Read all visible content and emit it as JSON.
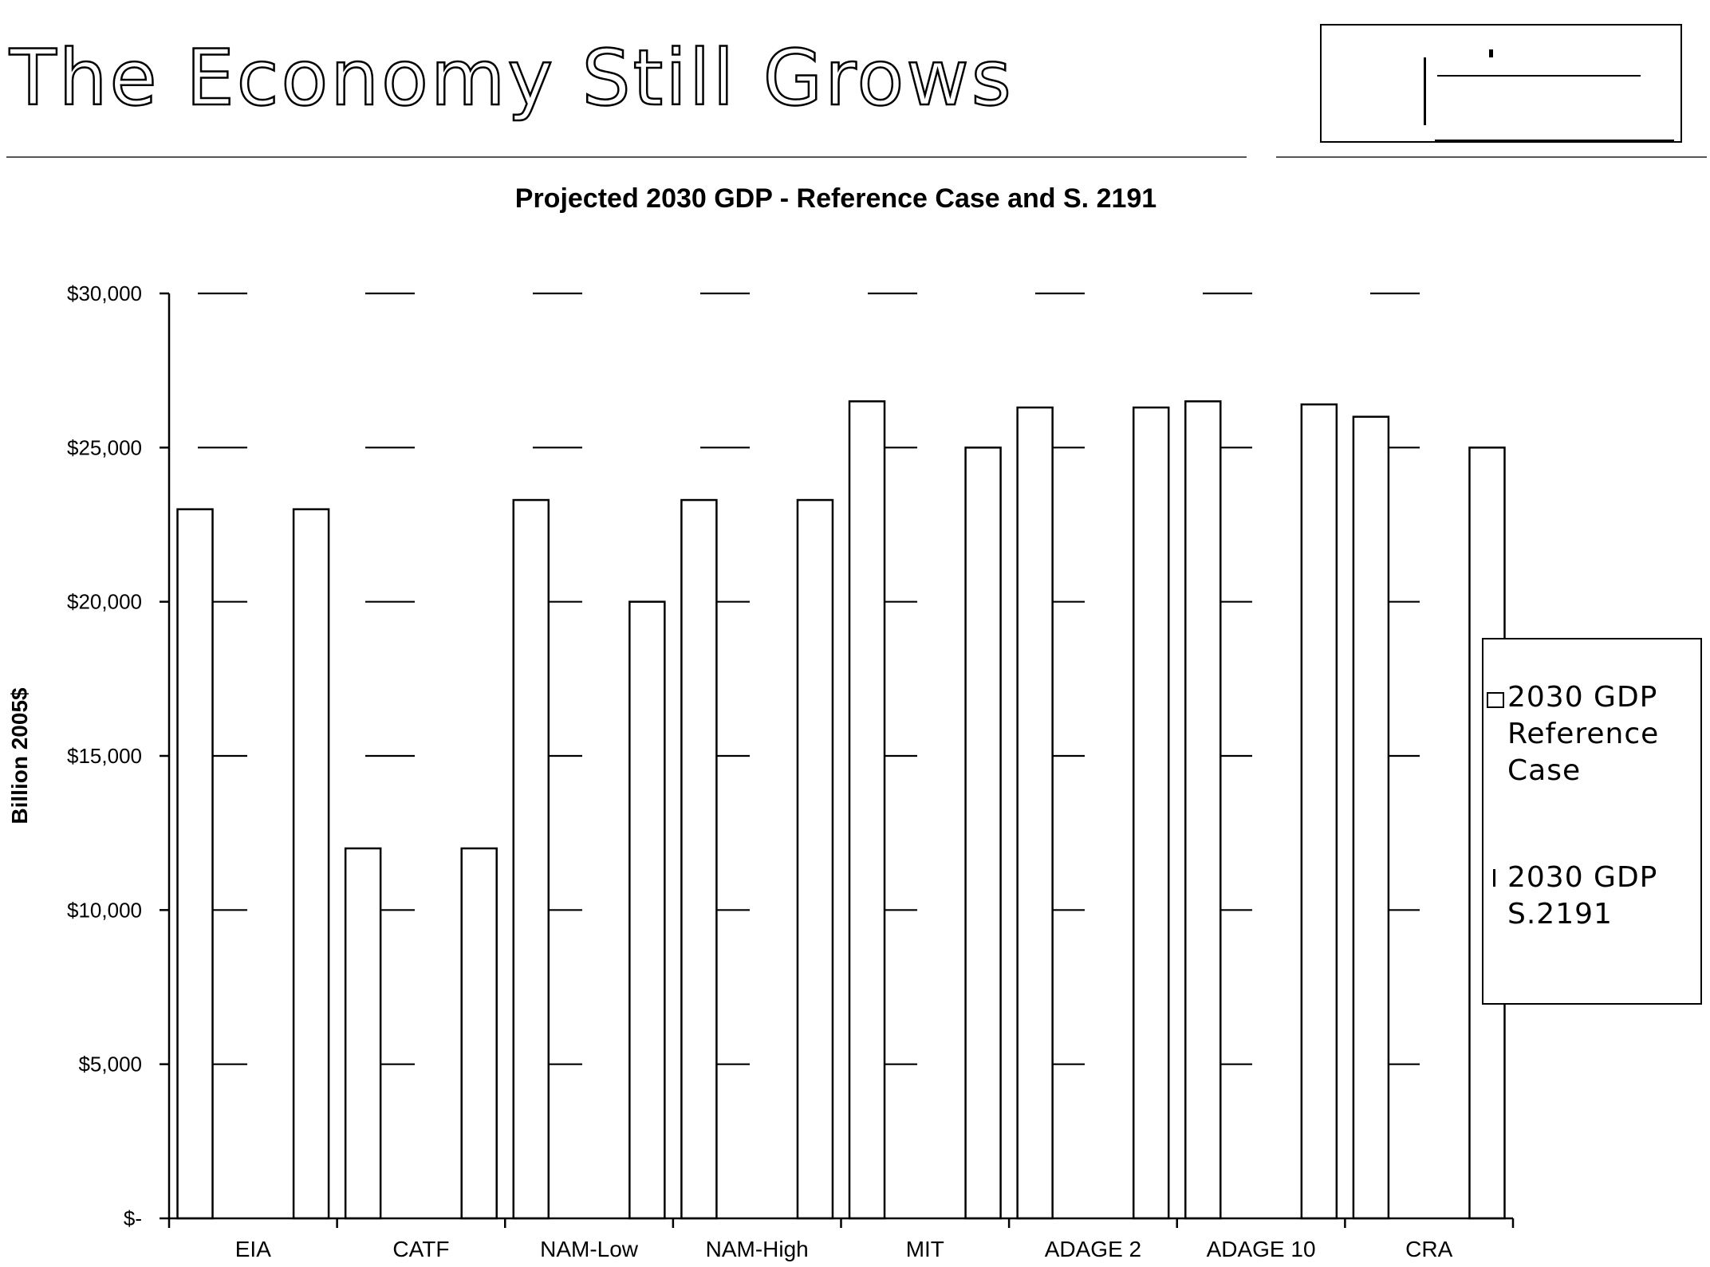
{
  "slide": {
    "title": "The Economy Still Grows"
  },
  "chart_data": {
    "type": "bar",
    "title": "Projected 2030 GDP - Reference Case and S. 2191",
    "xlabel": "",
    "ylabel": "Billion 2005$",
    "ylim": [
      0,
      30000
    ],
    "yticks": [
      0,
      5000,
      10000,
      15000,
      20000,
      25000,
      30000
    ],
    "ytick_labels": [
      "$-",
      "$5,000",
      "$10,000",
      "$15,000",
      "$20,000",
      "$25,000",
      "$30,000"
    ],
    "categories": [
      "EIA",
      "CATF",
      "NAM-Low",
      "NAM-High",
      "MIT",
      "ADAGE 2",
      "ADAGE 10",
      "CRA"
    ],
    "series": [
      {
        "name": "2030 GDP Reference Case",
        "values": [
          23000,
          12000,
          23300,
          23300,
          26500,
          26300,
          26500,
          26000
        ],
        "color": "#ffffff"
      },
      {
        "name": "2030 GDP S.2191",
        "values": [
          23000,
          12000,
          20000,
          23300,
          25000,
          26300,
          26400,
          25000
        ],
        "color": "#ffffff"
      }
    ],
    "legend_position": "right",
    "grid": true
  },
  "legend": {
    "ref_label": "2030 GDP Reference Case",
    "s2191_label": "2030 GDP S.2191"
  }
}
